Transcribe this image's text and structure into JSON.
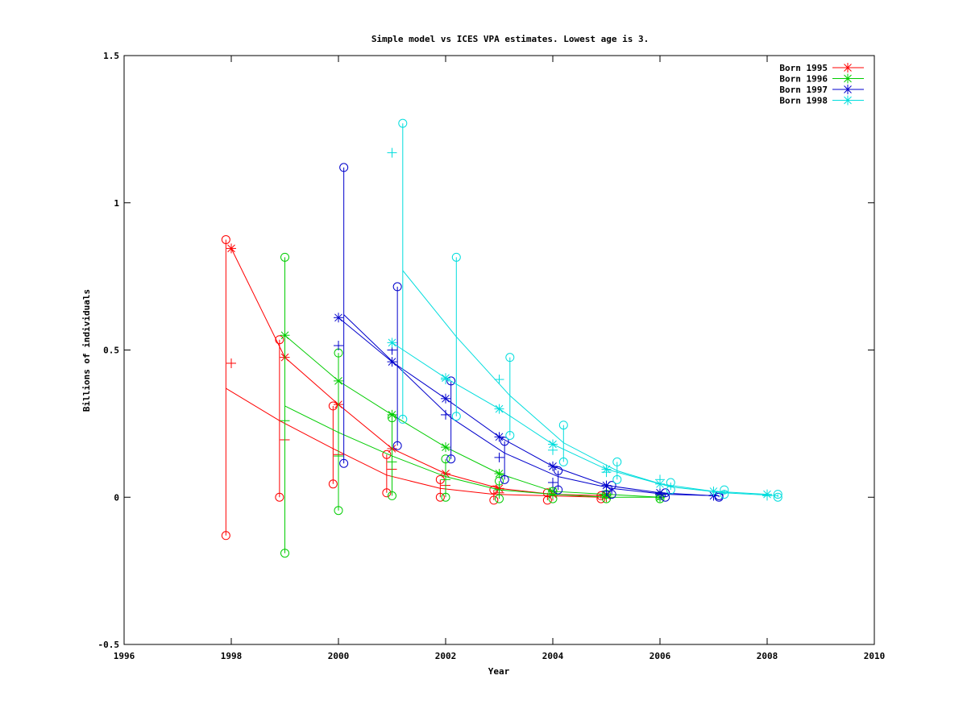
{
  "chart_data": {
    "type": "line",
    "title": "Simple model vs ICES VPA estimates. Lowest age is 3.",
    "xlabel": "Year",
    "ylabel": "Billions of individuals",
    "xlim": [
      1996,
      2010
    ],
    "ylim": [
      -0.5,
      1.5
    ],
    "xticks": [
      1996,
      1998,
      2000,
      2002,
      2004,
      2006,
      2008,
      2010
    ],
    "xtick_labels": [
      "1996",
      "1998",
      "2000",
      "2002",
      "2004",
      "2006",
      "2008",
      "2010"
    ],
    "yticks": [
      -0.5,
      0,
      0.5,
      1,
      1.5
    ],
    "ytick_labels": [
      "-0.5",
      "0",
      "0.5",
      "1",
      "1.5"
    ],
    "legend_position": "top-right",
    "grid": false,
    "series": [
      {
        "name": "Born 1995",
        "color": "#ff0000",
        "vpa": [
          {
            "x": 1998,
            "y": 0.845
          },
          {
            "x": 1999,
            "y": 0.475
          },
          {
            "x": 2000,
            "y": 0.315
          },
          {
            "x": 2001,
            "y": 0.165
          },
          {
            "x": 2002,
            "y": 0.08
          },
          {
            "x": 2003,
            "y": 0.03
          },
          {
            "x": 2004,
            "y": 0.01
          },
          {
            "x": 2005,
            "y": 0.005
          }
        ],
        "model": [
          {
            "x": 1997.9,
            "y": 0.37
          },
          {
            "x": 1998.9,
            "y": 0.26
          },
          {
            "x": 1999.9,
            "y": 0.165
          },
          {
            "x": 2000.9,
            "y": 0.075
          },
          {
            "x": 2001.9,
            "y": 0.03
          },
          {
            "x": 2002.9,
            "y": 0.01
          },
          {
            "x": 2003.9,
            "y": 0.005
          },
          {
            "x": 2004.9,
            "y": 0.0
          }
        ],
        "model_low": [
          -0.13,
          0.0,
          0.045,
          0.015,
          0.0,
          -0.01,
          -0.01,
          -0.005
        ],
        "model_high": [
          0.875,
          0.535,
          0.31,
          0.145,
          0.06,
          0.025,
          0.015,
          0.005
        ],
        "plus": [
          {
            "x": 1998,
            "y": 0.455
          },
          {
            "x": 1999,
            "y": 0.195
          },
          {
            "x": 2000,
            "y": 0.145
          },
          {
            "x": 2001,
            "y": 0.095
          },
          {
            "x": 2002,
            "y": 0.04
          },
          {
            "x": 2003,
            "y": 0.015
          },
          {
            "x": 2004,
            "y": 0.005
          },
          {
            "x": 2005,
            "y": 0.0
          }
        ]
      },
      {
        "name": "Born 1996",
        "color": "#00cc00",
        "vpa": [
          {
            "x": 1999,
            "y": 0.55
          },
          {
            "x": 2000,
            "y": 0.395
          },
          {
            "x": 2001,
            "y": 0.28
          },
          {
            "x": 2002,
            "y": 0.17
          },
          {
            "x": 2003,
            "y": 0.08
          },
          {
            "x": 2004,
            "y": 0.02
          },
          {
            "x": 2005,
            "y": 0.01
          },
          {
            "x": 2006,
            "y": 0.0
          }
        ],
        "model": [
          {
            "x": 1999,
            "y": 0.31
          },
          {
            "x": 2000,
            "y": 0.22
          },
          {
            "x": 2001,
            "y": 0.14
          },
          {
            "x": 2002,
            "y": 0.07
          },
          {
            "x": 2003,
            "y": 0.025
          },
          {
            "x": 2004,
            "y": 0.01
          },
          {
            "x": 2005,
            "y": 0.0
          },
          {
            "x": 2006,
            "y": 0.0
          }
        ],
        "model_low": [
          -0.19,
          -0.045,
          0.005,
          0.0,
          -0.005,
          -0.005,
          -0.005,
          -0.005
        ],
        "model_high": [
          0.815,
          0.49,
          0.27,
          0.13,
          0.055,
          0.02,
          0.01,
          0.005
        ],
        "plus": [
          {
            "x": 1999,
            "y": 0.26
          },
          {
            "x": 2000,
            "y": 0.14
          },
          {
            "x": 2001,
            "y": 0.12
          },
          {
            "x": 2002,
            "y": 0.06
          },
          {
            "x": 2003,
            "y": 0.025
          },
          {
            "x": 2004,
            "y": 0.01
          },
          {
            "x": 2005,
            "y": 0.005
          },
          {
            "x": 2006,
            "y": 0.0
          }
        ]
      },
      {
        "name": "Born 1997",
        "color": "#0000cc",
        "vpa": [
          {
            "x": 2000,
            "y": 0.61
          },
          {
            "x": 2001,
            "y": 0.46
          },
          {
            "x": 2002,
            "y": 0.335
          },
          {
            "x": 2003,
            "y": 0.205
          },
          {
            "x": 2004,
            "y": 0.105
          },
          {
            "x": 2005,
            "y": 0.04
          },
          {
            "x": 2006,
            "y": 0.015
          },
          {
            "x": 2007,
            "y": 0.005
          }
        ],
        "model": [
          {
            "x": 2000.1,
            "y": 0.62
          },
          {
            "x": 2001.1,
            "y": 0.445
          },
          {
            "x": 2002.1,
            "y": 0.27
          },
          {
            "x": 2003.1,
            "y": 0.15
          },
          {
            "x": 2004.1,
            "y": 0.07
          },
          {
            "x": 2005.1,
            "y": 0.03
          },
          {
            "x": 2006.1,
            "y": 0.01
          },
          {
            "x": 2007.1,
            "y": 0.005
          }
        ],
        "model_low": [
          0.115,
          0.175,
          0.13,
          0.06,
          0.025,
          0.01,
          0.0,
          0.0
        ],
        "model_high": [
          1.12,
          0.715,
          0.395,
          0.19,
          0.09,
          0.04,
          0.015,
          0.005
        ],
        "plus": [
          {
            "x": 2000,
            "y": 0.515
          },
          {
            "x": 2001,
            "y": 0.5
          },
          {
            "x": 2002,
            "y": 0.28
          },
          {
            "x": 2003,
            "y": 0.135
          },
          {
            "x": 2004,
            "y": 0.05
          },
          {
            "x": 2005,
            "y": 0.02
          },
          {
            "x": 2006,
            "y": 0.01
          },
          {
            "x": 2007,
            "y": 0.005
          }
        ]
      },
      {
        "name": "Born 1998",
        "color": "#00dddd",
        "vpa": [
          {
            "x": 2001,
            "y": 0.525
          },
          {
            "x": 2002,
            "y": 0.405
          },
          {
            "x": 2003,
            "y": 0.3
          },
          {
            "x": 2004,
            "y": 0.18
          },
          {
            "x": 2005,
            "y": 0.095
          },
          {
            "x": 2006,
            "y": 0.045
          },
          {
            "x": 2007,
            "y": 0.02
          },
          {
            "x": 2008,
            "y": 0.01
          }
        ],
        "model": [
          {
            "x": 2001.2,
            "y": 0.77
          },
          {
            "x": 2002.2,
            "y": 0.545
          },
          {
            "x": 2003.2,
            "y": 0.345
          },
          {
            "x": 2004.2,
            "y": 0.185
          },
          {
            "x": 2005.2,
            "y": 0.09
          },
          {
            "x": 2006.2,
            "y": 0.035
          },
          {
            "x": 2007.2,
            "y": 0.015
          },
          {
            "x": 2008.2,
            "y": 0.005
          }
        ],
        "model_low": [
          0.265,
          0.275,
          0.21,
          0.12,
          0.06,
          0.025,
          0.01,
          0.0
        ],
        "model_high": [
          1.27,
          0.815,
          0.475,
          0.245,
          0.12,
          0.05,
          0.025,
          0.01
        ],
        "plus": [
          {
            "x": 2001,
            "y": 1.17
          },
          {
            "x": 2002,
            "y": 0.4
          },
          {
            "x": 2003,
            "y": 0.4
          },
          {
            "x": 2004,
            "y": 0.16
          },
          {
            "x": 2005,
            "y": 0.085
          },
          {
            "x": 2006,
            "y": 0.06
          },
          {
            "x": 2007,
            "y": 0.02
          },
          {
            "x": 2008,
            "y": 0.005
          }
        ]
      }
    ]
  }
}
